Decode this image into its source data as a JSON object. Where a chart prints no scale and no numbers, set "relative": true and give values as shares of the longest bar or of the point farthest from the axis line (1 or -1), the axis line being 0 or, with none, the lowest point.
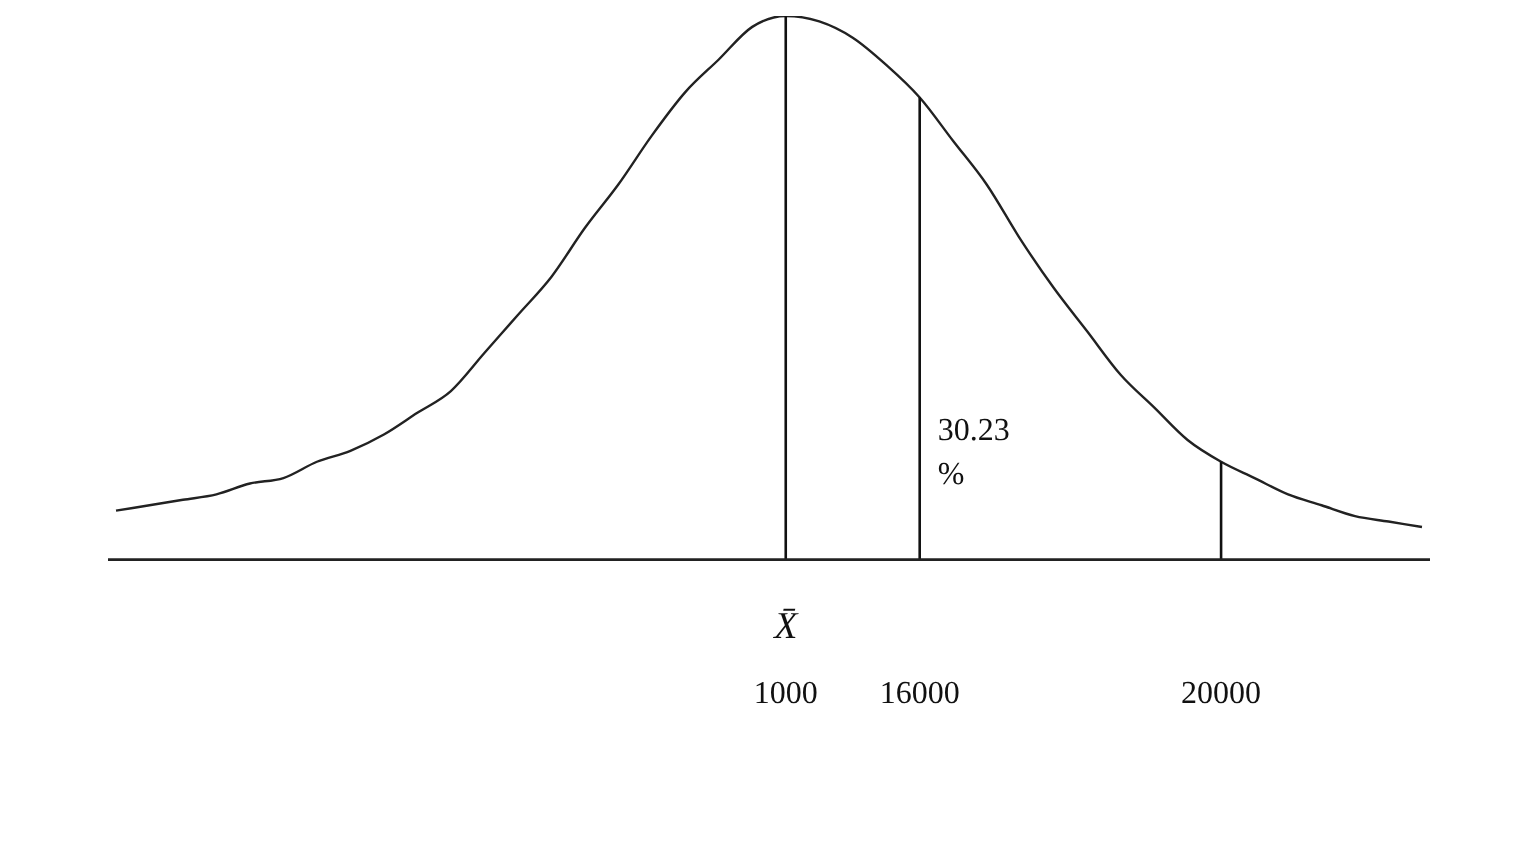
{
  "chart_data": {
    "type": "line",
    "relative": true,
    "xlabel": "X̄",
    "marker": "none",
    "grid": false,
    "legend": false,
    "categories": [
      null,
      null,
      null,
      null,
      null,
      null,
      null,
      null,
      null,
      null,
      null,
      null,
      null,
      null,
      null,
      null,
      null,
      null,
      null,
      null,
      "1000",
      null,
      null,
      null,
      "16000",
      null,
      null,
      null,
      null,
      null,
      null,
      null,
      null,
      "20000",
      null,
      null,
      null,
      null,
      null,
      null
    ],
    "series": [
      {
        "color": "#222222",
        "values": [
          0.09,
          0.1,
          0.11,
          0.12,
          0.14,
          0.15,
          0.18,
          0.2,
          0.23,
          0.27,
          0.31,
          0.38,
          0.45,
          0.52,
          0.61,
          0.69,
          0.78,
          0.86,
          0.92,
          0.98,
          1,
          0.99,
          0.96,
          0.91,
          0.85,
          0.77,
          0.69,
          0.59,
          0.5,
          0.42,
          0.34,
          0.28,
          0.22,
          0.18,
          0.15,
          0.12,
          0.1,
          0.08,
          0.07,
          0.06
        ]
      }
    ],
    "ref_lines": [
      {
        "axis": "x",
        "value": "1000"
      },
      {
        "axis": "x",
        "value": "16000"
      },
      {
        "axis": "x",
        "value": "20000"
      }
    ],
    "annotations": [
      "30.23 %"
    ]
  }
}
